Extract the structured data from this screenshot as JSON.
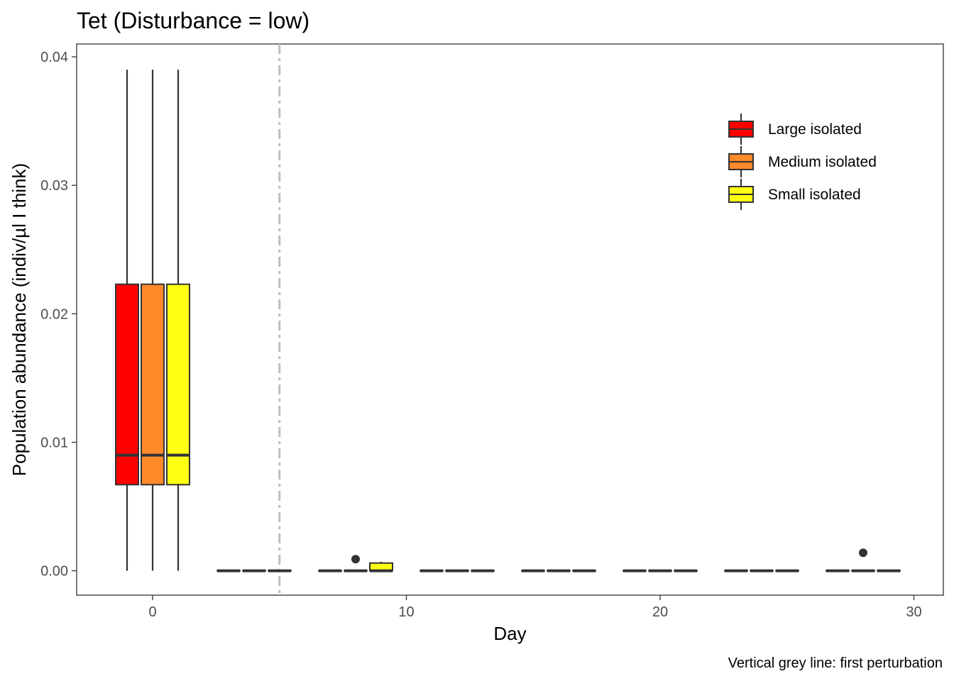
{
  "chart_data": {
    "type": "boxplot",
    "title": "Tet (Disturbance = low)",
    "xlabel": "Day",
    "ylabel": "Population abundance (indiv/µl I think)",
    "caption": "Vertical grey line: first perturbation",
    "xlim": [
      -3,
      31
    ],
    "ylim": [
      -0.0019,
      0.041
    ],
    "x_ticks": [
      0,
      10,
      20,
      30
    ],
    "x_tick_labels": [
      "0",
      "10",
      "20",
      "30"
    ],
    "y_ticks": [
      0,
      0.01,
      0.02,
      0.03,
      0.04
    ],
    "y_tick_labels": [
      "0.00",
      "0.01",
      "0.02",
      "0.03",
      "0.04"
    ],
    "grid": false,
    "legend_position": "top-right",
    "reference_line": {
      "x": 5,
      "style": "dashed",
      "color": "#bebebe"
    },
    "series": [
      {
        "name": "Large isolated",
        "color": "#ff0000",
        "boxes": [
          {
            "day": 0,
            "min": 0,
            "q1": 0.0067,
            "median": 0.009,
            "q3": 0.0223,
            "max": 0.039
          },
          {
            "day": 4,
            "min": 0,
            "q1": 0,
            "median": 0,
            "q3": 0,
            "max": 0
          },
          {
            "day": 8,
            "min": 0,
            "q1": 0,
            "median": 0,
            "q3": 0,
            "max": 0
          },
          {
            "day": 12,
            "min": 0,
            "q1": 0,
            "median": 0,
            "q3": 0,
            "max": 0
          },
          {
            "day": 16,
            "min": 0,
            "q1": 0,
            "median": 0,
            "q3": 0,
            "max": 0
          },
          {
            "day": 20,
            "min": 0,
            "q1": 0,
            "median": 0,
            "q3": 0,
            "max": 0
          },
          {
            "day": 24,
            "min": 0,
            "q1": 0,
            "median": 0,
            "q3": 0,
            "max": 0
          },
          {
            "day": 28,
            "min": 0,
            "q1": 0,
            "median": 0,
            "q3": 0,
            "max": 0
          }
        ]
      },
      {
        "name": "Medium isolated",
        "color": "#ff8a2a",
        "boxes": [
          {
            "day": 0,
            "min": 0,
            "q1": 0.0067,
            "median": 0.009,
            "q3": 0.0223,
            "max": 0.039
          },
          {
            "day": 4,
            "min": 0,
            "q1": 0,
            "median": 0,
            "q3": 0,
            "max": 0
          },
          {
            "day": 8,
            "min": 0,
            "q1": 0,
            "median": 0,
            "q3": 0,
            "max": 0,
            "outliers": [
              0.0009
            ]
          },
          {
            "day": 12,
            "min": 0,
            "q1": 0,
            "median": 0,
            "q3": 0,
            "max": 0
          },
          {
            "day": 16,
            "min": 0,
            "q1": 0,
            "median": 0,
            "q3": 0,
            "max": 0
          },
          {
            "day": 20,
            "min": 0,
            "q1": 0,
            "median": 0,
            "q3": 0,
            "max": 0
          },
          {
            "day": 24,
            "min": 0,
            "q1": 0,
            "median": 0,
            "q3": 0,
            "max": 0
          },
          {
            "day": 28,
            "min": 0,
            "q1": 0,
            "median": 0,
            "q3": 0,
            "max": 0,
            "outliers": [
              0.0014
            ]
          }
        ]
      },
      {
        "name": "Small isolated",
        "color": "#ffff14",
        "boxes": [
          {
            "day": 0,
            "min": 0,
            "q1": 0.0067,
            "median": 0.009,
            "q3": 0.0223,
            "max": 0.039
          },
          {
            "day": 4,
            "min": 0,
            "q1": 0,
            "median": 0,
            "q3": 0,
            "max": 0
          },
          {
            "day": 8,
            "min": 0,
            "q1": 0,
            "median": 0,
            "q3": 0.0006,
            "max": 0.0007
          },
          {
            "day": 12,
            "min": 0,
            "q1": 0,
            "median": 0,
            "q3": 0,
            "max": 0
          },
          {
            "day": 16,
            "min": 0,
            "q1": 0,
            "median": 0,
            "q3": 0,
            "max": 0
          },
          {
            "day": 20,
            "min": 0,
            "q1": 0,
            "median": 0,
            "q3": 0,
            "max": 0
          },
          {
            "day": 24,
            "min": 0,
            "q1": 0,
            "median": 0,
            "q3": 0,
            "max": 0
          },
          {
            "day": 28,
            "min": 0,
            "q1": 0,
            "median": 0,
            "q3": 0,
            "max": 0
          }
        ]
      }
    ]
  }
}
